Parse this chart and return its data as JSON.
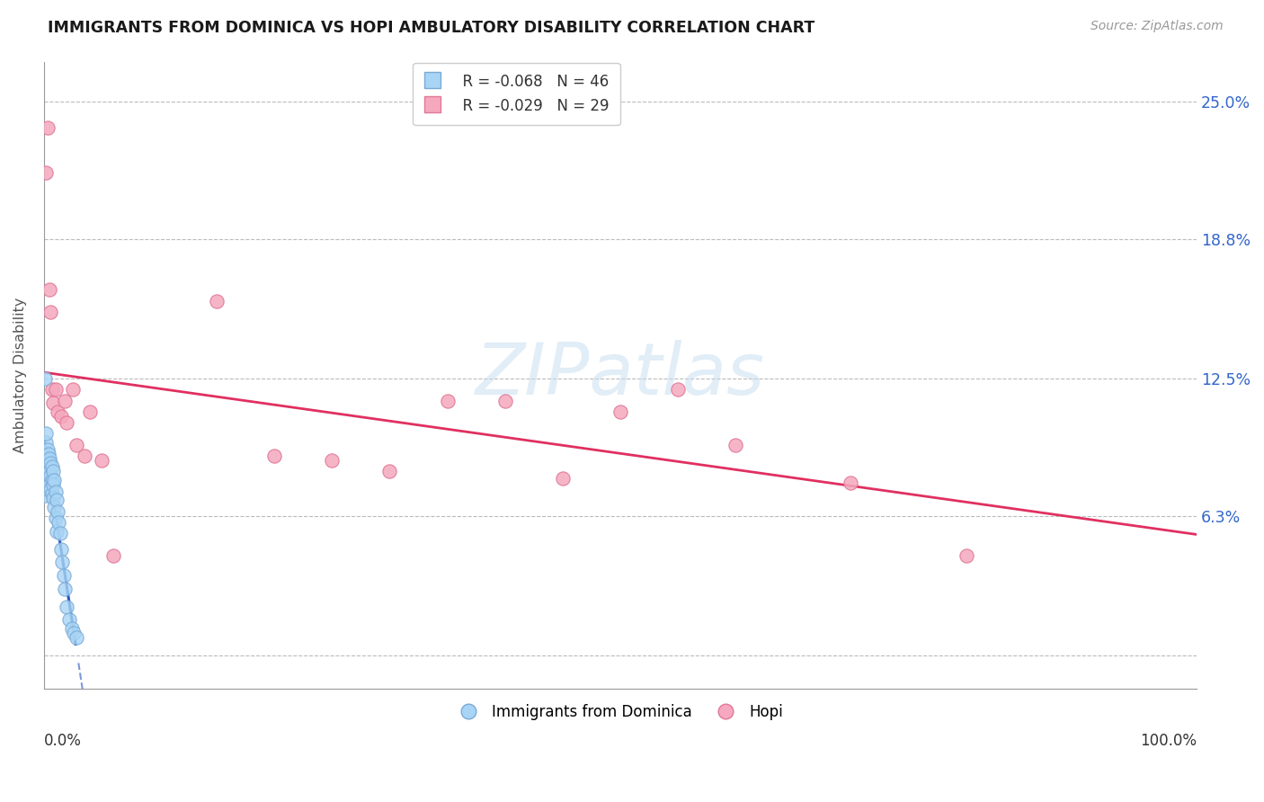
{
  "title": "IMMIGRANTS FROM DOMINICA VS HOPI AMBULATORY DISABILITY CORRELATION CHART",
  "source": "Source: ZipAtlas.com",
  "ylabel": "Ambulatory Disability",
  "yticks": [
    0.0,
    0.063,
    0.125,
    0.188,
    0.25
  ],
  "ytick_labels": [
    "",
    "6.3%",
    "12.5%",
    "18.8%",
    "25.0%"
  ],
  "xlim": [
    0.0,
    1.0
  ],
  "ylim": [
    -0.015,
    0.268
  ],
  "legend_blue_r": "R = -0.068",
  "legend_blue_n": "N = 46",
  "legend_pink_r": "R = -0.029",
  "legend_pink_n": "N = 29",
  "blue_color": "#A8D4F5",
  "pink_color": "#F5A8BE",
  "blue_edge": "#7AAAD5",
  "pink_edge": "#E07898",
  "trend_blue_solid": "#2255BB",
  "trend_pink_solid": "#E03060",
  "blue_x": [
    0.001,
    0.001,
    0.001,
    0.002,
    0.002,
    0.002,
    0.002,
    0.003,
    0.003,
    0.003,
    0.003,
    0.004,
    0.004,
    0.004,
    0.005,
    0.005,
    0.005,
    0.006,
    0.006,
    0.006,
    0.007,
    0.007,
    0.007,
    0.008,
    0.008,
    0.008,
    0.009,
    0.009,
    0.01,
    0.01,
    0.011,
    0.011,
    0.012,
    0.013,
    0.014,
    0.015,
    0.016,
    0.017,
    0.018,
    0.02,
    0.022,
    0.024,
    0.026,
    0.028,
    0.001,
    0.002
  ],
  "blue_y": [
    0.083,
    0.078,
    0.072,
    0.096,
    0.09,
    0.085,
    0.08,
    0.093,
    0.088,
    0.082,
    0.075,
    0.091,
    0.086,
    0.08,
    0.089,
    0.083,
    0.077,
    0.087,
    0.081,
    0.075,
    0.085,
    0.079,
    0.073,
    0.083,
    0.077,
    0.071,
    0.079,
    0.067,
    0.074,
    0.062,
    0.07,
    0.056,
    0.065,
    0.06,
    0.055,
    0.048,
    0.042,
    0.036,
    0.03,
    0.022,
    0.016,
    0.012,
    0.01,
    0.008,
    0.125,
    0.1
  ],
  "pink_x": [
    0.002,
    0.003,
    0.005,
    0.006,
    0.007,
    0.008,
    0.01,
    0.012,
    0.015,
    0.018,
    0.02,
    0.025,
    0.028,
    0.035,
    0.04,
    0.05,
    0.06,
    0.15,
    0.2,
    0.25,
    0.3,
    0.35,
    0.4,
    0.45,
    0.5,
    0.55,
    0.6,
    0.7,
    0.8
  ],
  "pink_y": [
    0.218,
    0.238,
    0.165,
    0.155,
    0.12,
    0.114,
    0.12,
    0.11,
    0.108,
    0.115,
    0.105,
    0.12,
    0.095,
    0.09,
    0.11,
    0.088,
    0.045,
    0.16,
    0.09,
    0.088,
    0.083,
    0.115,
    0.115,
    0.08,
    0.11,
    0.12,
    0.095,
    0.078,
    0.045
  ],
  "trend_blue_split_x": 0.03,
  "trend_pink_color": "#E03060"
}
